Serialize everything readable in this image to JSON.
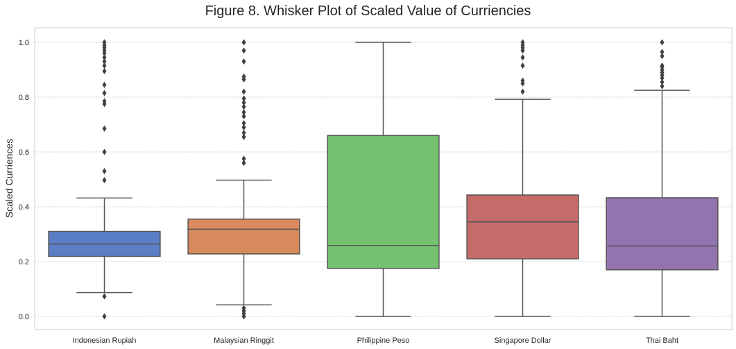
{
  "chart_data": {
    "type": "box",
    "title": "Figure 8. Whisker Plot of Scaled Value of Curriencies",
    "xlabel": "",
    "ylabel": "Scaled Curriences",
    "ylim": [
      -0.05,
      1.05
    ],
    "yticks": [
      "0.0",
      "0.2",
      "0.4",
      "0.6",
      "0.8",
      "1.0"
    ],
    "ytick_values": [
      0.0,
      0.2,
      0.4,
      0.6,
      0.8,
      1.0
    ],
    "grid": "horizontal dotted",
    "categories": [
      "Indonesian Rupiah",
      "Malaysian Ringgit",
      "Philippine Peso",
      "Singapore Dollar",
      "Thai Baht"
    ],
    "boxes": [
      {
        "category": "Indonesian Rupiah",
        "color": "#5a7fc6",
        "whisker_low": 0.087,
        "q1": 0.219,
        "median": 0.264,
        "q3": 0.31,
        "whisker_high": 0.432,
        "outliers": [
          0.0,
          0.073,
          0.497,
          0.53,
          0.6,
          0.685,
          0.775,
          0.785,
          0.815,
          0.845,
          0.895,
          0.915,
          0.93,
          0.945,
          0.96,
          0.97,
          0.98,
          0.99,
          1.0
        ]
      },
      {
        "category": "Malaysian Ringgit",
        "color": "#d98a5d",
        "whisker_low": 0.042,
        "q1": 0.228,
        "median": 0.318,
        "q3": 0.355,
        "whisker_high": 0.497,
        "outliers": [
          0.0,
          0.01,
          0.02,
          0.03,
          0.56,
          0.575,
          0.655,
          0.67,
          0.69,
          0.705,
          0.73,
          0.745,
          0.765,
          0.78,
          0.795,
          0.82,
          0.865,
          0.875,
          0.93,
          0.97,
          1.0
        ]
      },
      {
        "category": "Philippine Peso",
        "color": "#74c271",
        "whisker_low": 0.0,
        "q1": 0.175,
        "median": 0.259,
        "q3": 0.66,
        "whisker_high": 1.0,
        "outliers": []
      },
      {
        "category": "Singapore Dollar",
        "color": "#c56b6a",
        "whisker_low": 0.0,
        "q1": 0.21,
        "median": 0.345,
        "q3": 0.443,
        "whisker_high": 0.792,
        "outliers": [
          0.82,
          0.85,
          0.86,
          0.915,
          0.945,
          0.97,
          0.98,
          0.99,
          1.0
        ]
      },
      {
        "category": "Thai Baht",
        "color": "#9274ae",
        "whisker_low": 0.0,
        "q1": 0.17,
        "median": 0.257,
        "q3": 0.433,
        "whisker_high": 0.825,
        "outliers": [
          0.84,
          0.855,
          0.87,
          0.88,
          0.89,
          0.9,
          0.91,
          0.915,
          0.95,
          0.965,
          1.0
        ]
      }
    ]
  }
}
